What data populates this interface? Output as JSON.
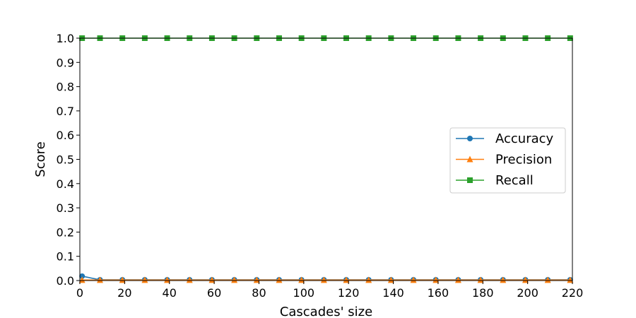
{
  "chart_data": {
    "type": "line",
    "title": "",
    "xlabel": "Cascades' size",
    "ylabel": "Score",
    "xlim": [
      0,
      220
    ],
    "ylim": [
      0,
      1.0
    ],
    "xticks": [
      0,
      20,
      40,
      60,
      80,
      100,
      120,
      140,
      160,
      180,
      200,
      220
    ],
    "yticks": [
      0.0,
      0.1,
      0.2,
      0.3,
      0.4,
      0.5,
      0.6,
      0.7,
      0.8,
      0.9,
      1.0
    ],
    "xtick_labels": [
      "0",
      "20",
      "40",
      "60",
      "80",
      "100",
      "120",
      "140",
      "160",
      "180",
      "200",
      "220"
    ],
    "ytick_labels": [
      "0.0",
      "0.1",
      "0.2",
      "0.3",
      "0.4",
      "0.5",
      "0.6",
      "0.7",
      "0.8",
      "0.9",
      "1.0"
    ],
    "x": [
      1,
      9,
      19,
      29,
      39,
      49,
      59,
      69,
      79,
      89,
      99,
      109,
      119,
      129,
      139,
      149,
      159,
      169,
      179,
      189,
      199,
      209,
      219
    ],
    "grid": false,
    "legend_position": "center-right",
    "series": [
      {
        "name": "Accuracy",
        "color": "#1f77b4",
        "marker": "circle",
        "values": [
          0.018,
          0.003,
          0.003,
          0.003,
          0.003,
          0.003,
          0.003,
          0.003,
          0.003,
          0.003,
          0.003,
          0.003,
          0.003,
          0.003,
          0.003,
          0.003,
          0.003,
          0.003,
          0.003,
          0.003,
          0.003,
          0.003,
          0.003
        ]
      },
      {
        "name": "Precision",
        "color": "#ff7f0e",
        "marker": "triangle",
        "values": [
          0.002,
          0.002,
          0.002,
          0.002,
          0.002,
          0.002,
          0.002,
          0.002,
          0.002,
          0.002,
          0.002,
          0.002,
          0.002,
          0.002,
          0.002,
          0.002,
          0.002,
          0.002,
          0.002,
          0.002,
          0.002,
          0.002,
          0.002
        ]
      },
      {
        "name": "Recall",
        "color": "#2ca02c",
        "marker": "square",
        "values": [
          1.0,
          1.0,
          1.0,
          1.0,
          1.0,
          1.0,
          1.0,
          1.0,
          1.0,
          1.0,
          1.0,
          1.0,
          1.0,
          1.0,
          1.0,
          1.0,
          1.0,
          1.0,
          1.0,
          1.0,
          1.0,
          1.0,
          1.0
        ]
      }
    ]
  }
}
